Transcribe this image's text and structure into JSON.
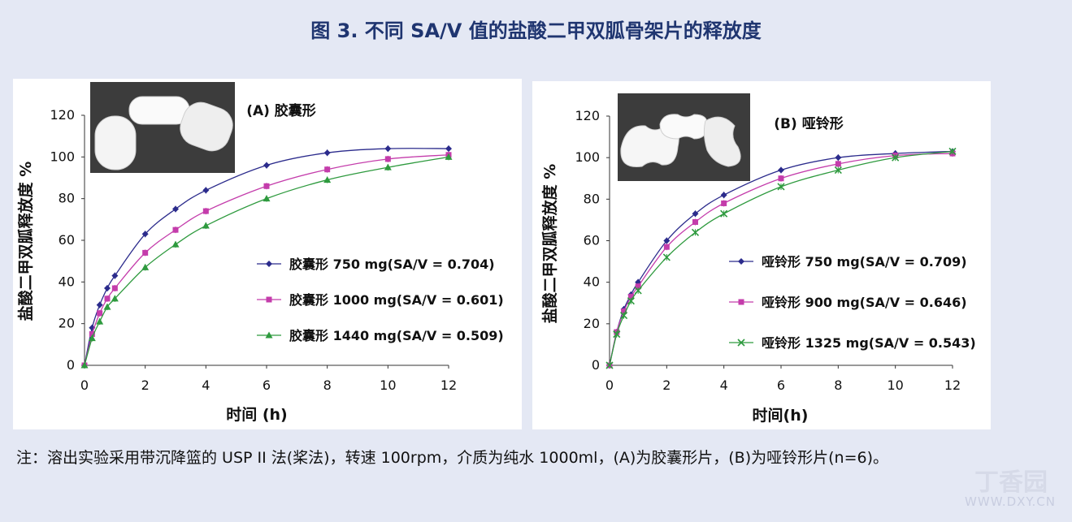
{
  "figure_title": "图 3. 不同 SA/V 值的盐酸二甲双胍骨架片的释放度",
  "footnote": "注：溶出实验采用带沉降篮的 USP II 法(桨法)，转速 100rpm，介质为纯水 1000ml，(A)为胶囊形片，(B)为哑铃形片(n=6)。",
  "watermark": "WWW.DXY.CN",
  "watermark_logo": "丁香园",
  "chart_data": [
    {
      "type": "line",
      "title": "(A) 胶囊形",
      "xlabel": "时间 (h)",
      "ylabel": "盐酸二甲双胍释放度 %",
      "xlim": [
        0,
        12
      ],
      "ylim": [
        0,
        120
      ],
      "xticks": [
        0,
        2,
        4,
        6,
        8,
        10,
        12
      ],
      "yticks": [
        0,
        20,
        40,
        60,
        80,
        100,
        120
      ],
      "legend_position": "center-right",
      "series": [
        {
          "name": "胶囊形 750 mg(SA/V = 0.704)",
          "color": "#2b2b8c",
          "marker": "diamond",
          "x": [
            0,
            0.25,
            0.5,
            0.75,
            1,
            2,
            3,
            4,
            6,
            8,
            10,
            12
          ],
          "y": [
            0,
            18,
            29,
            37,
            43,
            63,
            75,
            84,
            96,
            102,
            104,
            104
          ]
        },
        {
          "name": "胶囊形 1000 mg(SA/V = 0.601)",
          "color": "#c43cab",
          "marker": "square",
          "x": [
            0,
            0.25,
            0.5,
            0.75,
            1,
            2,
            3,
            4,
            6,
            8,
            10,
            12
          ],
          "y": [
            0,
            15,
            25,
            32,
            37,
            54,
            65,
            74,
            86,
            94,
            99,
            101
          ]
        },
        {
          "name": "胶囊形 1440 mg(SA/V = 0.509)",
          "color": "#2e9a3e",
          "marker": "triangle",
          "x": [
            0,
            0.25,
            0.5,
            0.75,
            1,
            2,
            3,
            4,
            6,
            8,
            10,
            12
          ],
          "y": [
            0,
            13,
            21,
            28,
            32,
            47,
            58,
            67,
            80,
            89,
            95,
            100
          ]
        }
      ]
    },
    {
      "type": "line",
      "title": "(B) 哑铃形",
      "xlabel": "时间(h)",
      "ylabel": "盐酸二甲双胍释放度 %",
      "xlim": [
        0,
        12
      ],
      "ylim": [
        0,
        120
      ],
      "xticks": [
        0,
        2,
        4,
        6,
        8,
        10,
        12
      ],
      "yticks": [
        0,
        20,
        40,
        60,
        80,
        100,
        120
      ],
      "legend_position": "center-right",
      "series": [
        {
          "name": "哑铃形 750 mg(SA/V = 0.709)",
          "color": "#2b2b8c",
          "marker": "diamond",
          "x": [
            0,
            0.25,
            0.5,
            0.75,
            1,
            2,
            3,
            4,
            6,
            8,
            10,
            12
          ],
          "y": [
            0,
            16,
            27,
            34,
            40,
            60,
            73,
            82,
            94,
            100,
            102,
            103
          ]
        },
        {
          "name": "哑铃形 900 mg(SA/V = 0.646)",
          "color": "#c43cab",
          "marker": "square",
          "x": [
            0,
            0.25,
            0.5,
            0.75,
            1,
            2,
            3,
            4,
            6,
            8,
            10,
            12
          ],
          "y": [
            0,
            16,
            26,
            33,
            38,
            57,
            69,
            78,
            90,
            97,
            101,
            102
          ]
        },
        {
          "name": "哑铃形 1325 mg(SA/V = 0.543)",
          "color": "#2e9a3e",
          "marker": "cross",
          "x": [
            0,
            0.25,
            0.5,
            0.75,
            1,
            2,
            3,
            4,
            6,
            8,
            10,
            12
          ],
          "y": [
            0,
            15,
            24,
            31,
            36,
            52,
            64,
            73,
            86,
            94,
            100,
            103
          ]
        }
      ]
    }
  ]
}
